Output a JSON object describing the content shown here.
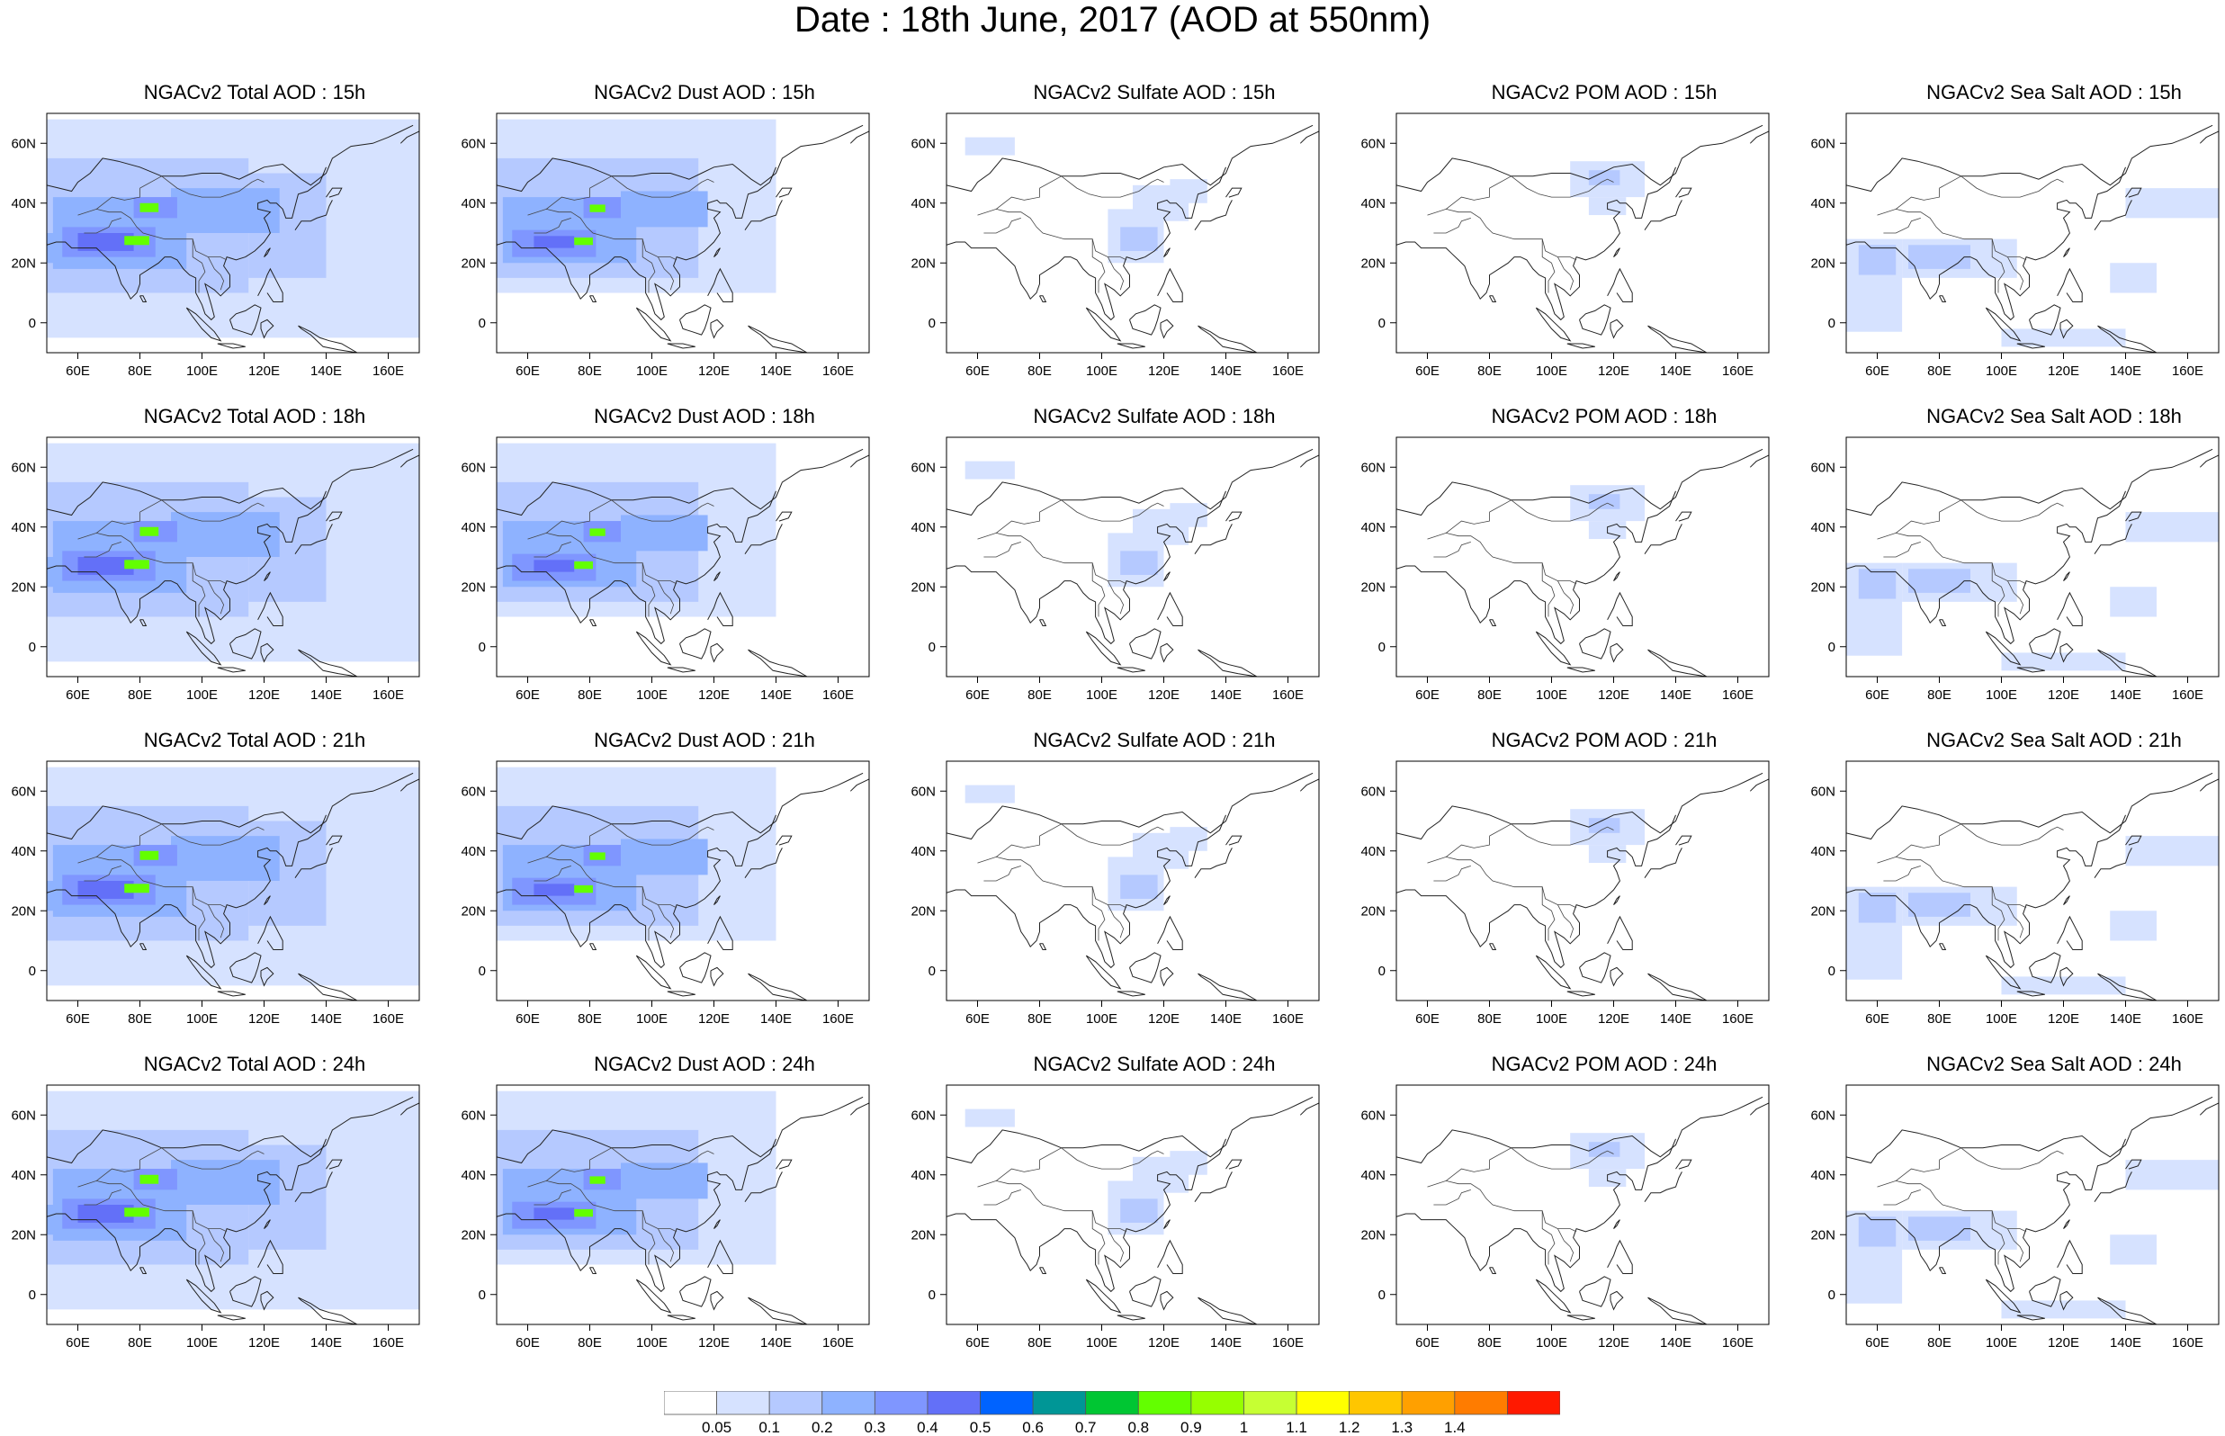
{
  "title": "Date : 18th June, 2017 (AOD at 550nm)",
  "axes": {
    "x_ticks": [
      "60E",
      "80E",
      "100E",
      "120E",
      "140E",
      "160E"
    ],
    "y_ticks": [
      "60N",
      "40N",
      "20N",
      "0"
    ]
  },
  "panels": [
    {
      "title": "NGACv2 Total AOD : 15h",
      "species": "total",
      "hour": 15
    },
    {
      "title": "NGACv2 Dust AOD : 15h",
      "species": "dust",
      "hour": 15
    },
    {
      "title": "NGACv2 Sulfate AOD : 15h",
      "species": "sulfate",
      "hour": 15
    },
    {
      "title": "NGACv2 POM AOD : 15h",
      "species": "pom",
      "hour": 15
    },
    {
      "title": "NGACv2 Sea Salt AOD : 15h",
      "species": "seasalt",
      "hour": 15
    },
    {
      "title": "NGACv2 Total AOD : 18h",
      "species": "total",
      "hour": 18
    },
    {
      "title": "NGACv2 Dust AOD : 18h",
      "species": "dust",
      "hour": 18
    },
    {
      "title": "NGACv2 Sulfate AOD : 18h",
      "species": "sulfate",
      "hour": 18
    },
    {
      "title": "NGACv2 POM AOD : 18h",
      "species": "pom",
      "hour": 18
    },
    {
      "title": "NGACv2 Sea Salt AOD : 18h",
      "species": "seasalt",
      "hour": 18
    },
    {
      "title": "NGACv2 Total AOD : 21h",
      "species": "total",
      "hour": 21
    },
    {
      "title": "NGACv2 Dust AOD : 21h",
      "species": "dust",
      "hour": 21
    },
    {
      "title": "NGACv2 Sulfate AOD : 21h",
      "species": "sulfate",
      "hour": 21
    },
    {
      "title": "NGACv2 POM AOD : 21h",
      "species": "pom",
      "hour": 21
    },
    {
      "title": "NGACv2 Sea Salt AOD : 21h",
      "species": "seasalt",
      "hour": 21
    },
    {
      "title": "NGACv2 Total AOD : 24h",
      "species": "total",
      "hour": 24
    },
    {
      "title": "NGACv2 Dust AOD : 24h",
      "species": "dust",
      "hour": 24
    },
    {
      "title": "NGACv2 Sulfate AOD : 24h",
      "species": "sulfate",
      "hour": 24
    },
    {
      "title": "NGACv2 POM AOD : 24h",
      "species": "pom",
      "hour": 24
    },
    {
      "title": "NGACv2 Sea Salt  AOD : 24h",
      "species": "seasalt",
      "hour": 24
    }
  ],
  "colorbar": {
    "labels": [
      "0.05",
      "0.1",
      "0.2",
      "0.3",
      "0.4",
      "0.5",
      "0.6",
      "0.7",
      "0.8",
      "0.9",
      "1",
      "1.1",
      "1.2",
      "1.3",
      "1.4"
    ],
    "colors": [
      "#ffffff",
      "#d6e2ff",
      "#b5c9ff",
      "#8eb2ff",
      "#7f96ff",
      "#6370f8",
      "#0063ff",
      "#009696",
      "#00c633",
      "#63ff00",
      "#96ff00",
      "#c6ff33",
      "#ffff00",
      "#ffc600",
      "#ffa000",
      "#ff7c00",
      "#ff1900"
    ]
  }
}
